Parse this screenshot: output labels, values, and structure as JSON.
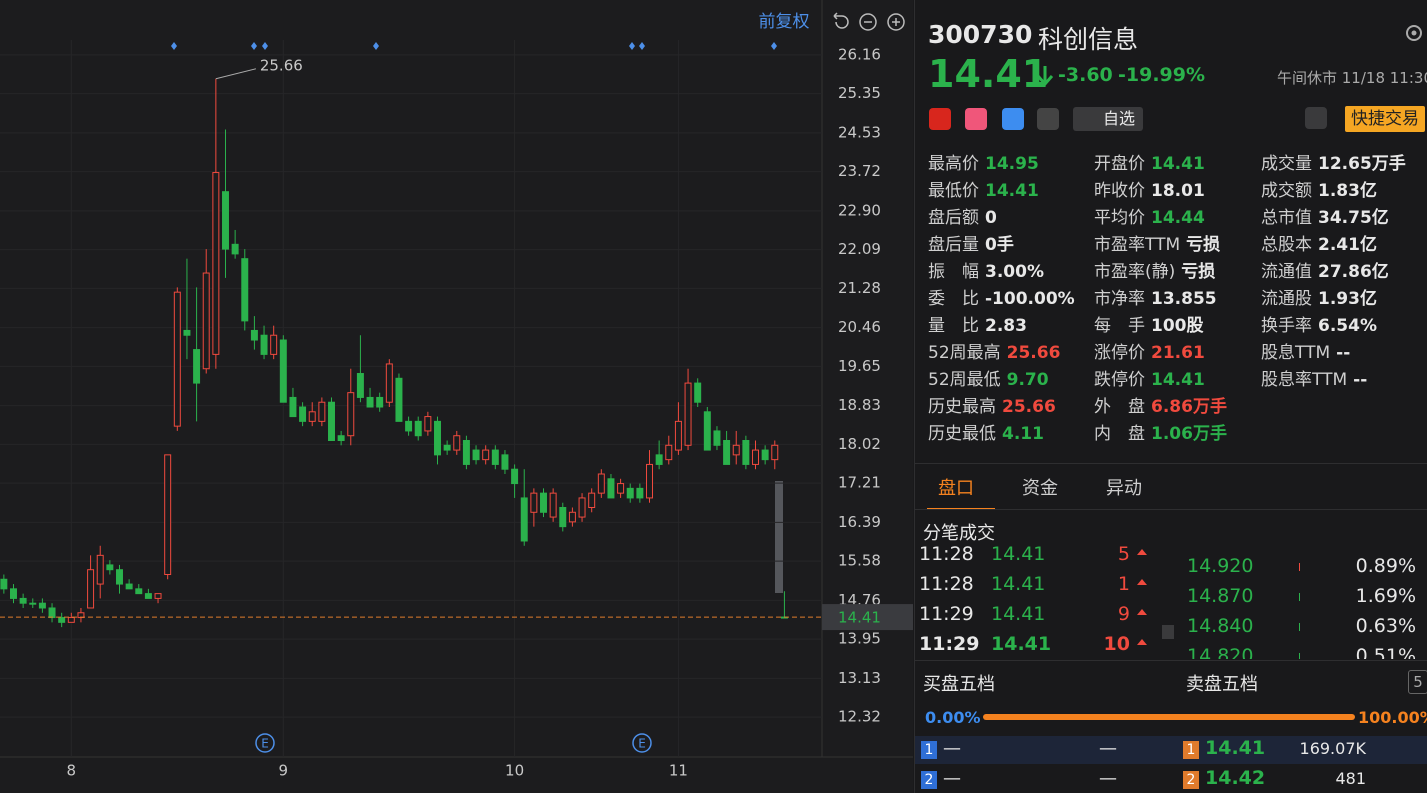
{
  "chart_data": {
    "type": "candlestick",
    "adjust_button": "前复权",
    "annotation": "25.66",
    "last_price": 14.41,
    "up_color": "#f04a3e",
    "down_color": "#2bb24c",
    "grid": true,
    "xlim": [
      -0.4,
      84.9
    ],
    "xticks": [
      {
        "value": 7,
        "label": "8"
      },
      {
        "value": 29,
        "label": "9"
      },
      {
        "value": 53,
        "label": "10"
      },
      {
        "value": 70,
        "label": "11"
      }
    ],
    "ylim": [
      12.05,
      26.47
    ],
    "yticks": [
      26.16,
      25.35,
      24.53,
      23.72,
      {
        "value": 22.9,
        "label": "22.90"
      },
      22.09,
      21.28,
      20.46,
      19.65,
      18.83,
      18.02,
      17.21,
      16.39,
      15.58,
      14.76,
      13.95,
      13.13,
      12.32
    ],
    "open": [
      15.2,
      15.0,
      14.8,
      14.7,
      14.7,
      14.6,
      14.4,
      14.3,
      14.4,
      14.6,
      15.1,
      15.5,
      15.4,
      15.1,
      15.0,
      14.9,
      14.8,
      15.3,
      18.4,
      20.4,
      20.0,
      19.6,
      19.9,
      23.3,
      22.2,
      21.9,
      20.4,
      20.3,
      19.9,
      20.2,
      19.0,
      18.8,
      18.5,
      18.5,
      18.9,
      18.2,
      18.2,
      19.5,
      19.0,
      19.0,
      18.9,
      19.4,
      18.5,
      18.5,
      18.3,
      18.5,
      18.0,
      17.9,
      18.1,
      17.9,
      17.7,
      17.9,
      17.8,
      17.5,
      16.9,
      16.6,
      17.0,
      16.5,
      16.7,
      16.4,
      16.5,
      16.7,
      17.0,
      17.3,
      17.0,
      17.1,
      17.1,
      16.9,
      17.8,
      17.7,
      17.9,
      18.0,
      19.3,
      18.7,
      18.3,
      18.1,
      17.8,
      18.1,
      17.6,
      17.9,
      17.7,
      14.41
    ],
    "high": [
      15.3,
      15.1,
      14.9,
      14.8,
      14.8,
      14.7,
      14.5,
      14.5,
      14.6,
      15.7,
      15.9,
      15.6,
      15.5,
      15.2,
      15.1,
      15.0,
      14.9,
      17.8,
      21.3,
      21.9,
      21.3,
      22.1,
      25.66,
      24.6,
      22.5,
      22.1,
      20.7,
      20.5,
      20.5,
      20.3,
      19.2,
      18.9,
      18.9,
      19.0,
      19.0,
      18.3,
      19.6,
      20.3,
      19.2,
      19.1,
      19.8,
      19.5,
      18.6,
      18.6,
      18.7,
      18.6,
      18.1,
      18.3,
      18.2,
      18.0,
      18.0,
      18.0,
      17.9,
      17.6,
      17.5,
      17.1,
      17.1,
      17.1,
      16.8,
      16.7,
      17.0,
      17.1,
      17.5,
      17.4,
      17.3,
      17.2,
      17.2,
      17.9,
      18.1,
      18.2,
      18.9,
      19.6,
      19.4,
      18.8,
      18.4,
      18.3,
      18.3,
      18.2,
      18.1,
      18.0,
      18.1,
      14.95
    ],
    "low": [
      14.9,
      14.7,
      14.6,
      14.6,
      14.5,
      14.3,
      14.2,
      14.3,
      14.3,
      14.6,
      14.8,
      15.3,
      14.9,
      15.0,
      14.9,
      14.8,
      14.7,
      15.2,
      18.3,
      19.8,
      18.5,
      19.5,
      19.6,
      21.5,
      21.9,
      20.4,
      20.0,
      19.8,
      19.8,
      18.9,
      18.6,
      18.4,
      18.4,
      18.4,
      18.1,
      18.0,
      18.0,
      18.9,
      18.8,
      18.7,
      18.8,
      18.5,
      18.2,
      18.1,
      18.2,
      17.6,
      17.8,
      17.8,
      17.5,
      17.6,
      17.6,
      17.5,
      17.4,
      16.9,
      15.9,
      16.3,
      16.5,
      16.4,
      16.2,
      16.3,
      16.4,
      16.6,
      16.9,
      16.9,
      16.9,
      16.8,
      16.8,
      16.8,
      17.5,
      17.6,
      17.8,
      17.9,
      18.8,
      17.9,
      17.9,
      17.6,
      17.6,
      17.5,
      17.5,
      17.6,
      17.5,
      14.41
    ],
    "close": [
      15.0,
      14.8,
      14.7,
      14.7,
      14.6,
      14.4,
      14.3,
      14.4,
      14.5,
      15.4,
      15.7,
      15.4,
      15.1,
      15.0,
      14.9,
      14.8,
      14.9,
      17.8,
      21.2,
      20.3,
      19.3,
      21.6,
      23.7,
      22.1,
      22.0,
      20.6,
      20.2,
      19.9,
      20.3,
      18.9,
      18.6,
      18.5,
      18.7,
      18.9,
      18.1,
      18.1,
      19.1,
      19.0,
      18.8,
      18.8,
      19.7,
      18.5,
      18.3,
      18.2,
      18.6,
      17.8,
      17.9,
      18.2,
      17.6,
      17.7,
      17.9,
      17.6,
      17.5,
      17.2,
      16.0,
      17.0,
      16.6,
      17.0,
      16.3,
      16.6,
      16.9,
      17.0,
      17.4,
      16.9,
      17.2,
      16.9,
      16.9,
      17.6,
      17.6,
      18.0,
      18.5,
      19.3,
      18.9,
      17.9,
      18.0,
      17.6,
      18.0,
      17.6,
      17.9,
      17.7,
      18.0,
      14.41
    ]
  },
  "quote": {
    "code": "300730",
    "name": "科创信息",
    "price": "14.41",
    "change": "-3.60",
    "change_pct": "-19.99%",
    "status": "午间休市 11/18 11:30",
    "watch_button": "自选",
    "trade_button": "快捷交易"
  },
  "stats": {
    "columns": [
      [
        {
          "label": "最高价",
          "value": "14.95",
          "color": "#2bb24c"
        },
        {
          "label": "最低价",
          "value": "14.41",
          "color": "#2bb24c"
        },
        {
          "label": "盘后额",
          "value": "0",
          "color": "#e8e8e8"
        },
        {
          "label": "盘后量",
          "value": "0手",
          "color": "#e8e8e8"
        },
        {
          "label": "振　幅",
          "value": "3.00%",
          "color": "#e8e8e8"
        },
        {
          "label": "委　比",
          "value": "-100.00%",
          "color": "#e8e8e8"
        },
        {
          "label": "量　比",
          "value": "2.83",
          "color": "#e8e8e8"
        },
        {
          "label": "52周最高",
          "value": "25.66",
          "color": "#f04a3e"
        },
        {
          "label": "52周最低",
          "value": "9.70",
          "color": "#2bb24c"
        },
        {
          "label": "历史最高",
          "value": "25.66",
          "color": "#f04a3e"
        },
        {
          "label": "历史最低",
          "value": "4.11",
          "color": "#2bb24c"
        }
      ],
      [
        {
          "label": "开盘价",
          "value": "14.41",
          "color": "#2bb24c"
        },
        {
          "label": "昨收价",
          "value": "18.01",
          "color": "#e8e8e8"
        },
        {
          "label": "平均价",
          "value": "14.44",
          "color": "#2bb24c"
        },
        {
          "label": "市盈率TTM",
          "value": "亏损",
          "color": "#e8e8e8"
        },
        {
          "label": "市盈率(静)",
          "value": "亏损",
          "color": "#e8e8e8"
        },
        {
          "label": "市净率",
          "value": "13.855",
          "color": "#e8e8e8"
        },
        {
          "label": "每　手",
          "value": "100股",
          "color": "#e8e8e8"
        },
        {
          "label": "涨停价",
          "value": "21.61",
          "color": "#f04a3e"
        },
        {
          "label": "跌停价",
          "value": "14.41",
          "color": "#2bb24c"
        },
        {
          "label": "外　盘",
          "value": "6.86万手",
          "color": "#f04a3e"
        },
        {
          "label": "内　盘",
          "value": "1.06万手",
          "color": "#2bb24c"
        }
      ],
      [
        {
          "label": "成交量",
          "value": "12.65万手",
          "color": "#e8e8e8"
        },
        {
          "label": "成交额",
          "value": "1.83亿",
          "color": "#e8e8e8"
        },
        {
          "label": "总市值",
          "value": "34.75亿",
          "color": "#e8e8e8"
        },
        {
          "label": "总股本",
          "value": "2.41亿",
          "color": "#e8e8e8"
        },
        {
          "label": "流通值",
          "value": "27.86亿",
          "color": "#e8e8e8"
        },
        {
          "label": "流通股",
          "value": "1.93亿",
          "color": "#e8e8e8"
        },
        {
          "label": "换手率",
          "value": "6.54%",
          "color": "#e8e8e8"
        },
        {
          "label": "股息TTM",
          "value": "--",
          "color": "#e8e8e8"
        },
        {
          "label": "股息率TTM",
          "value": "--",
          "color": "#e8e8e8"
        }
      ]
    ]
  },
  "tabs": [
    "盘口",
    "资金",
    "异动"
  ],
  "trades": {
    "title": "分笔成交",
    "rows": [
      {
        "time": "11:28",
        "price": "14.41",
        "volume": "5"
      },
      {
        "time": "11:28",
        "price": "14.41",
        "volume": "1"
      },
      {
        "time": "11:29",
        "price": "14.41",
        "volume": "9"
      },
      {
        "time": "11:29",
        "price": "14.41",
        "volume": "10"
      }
    ],
    "distribution": [
      {
        "price": "14.920",
        "pct": "0.89%"
      },
      {
        "price": "14.870",
        "pct": "1.69%"
      },
      {
        "price": "14.840",
        "pct": "0.63%"
      },
      {
        "price": "14.820",
        "pct": "0.51%"
      }
    ]
  },
  "order_book": {
    "buy_title": "买盘五档",
    "sell_title": "卖盘五档",
    "depth": "5",
    "buy_pct": "0.00%",
    "sell_pct": "100.00%",
    "rows": [
      {
        "buy_level": "1",
        "buy_price": "—",
        "buy_volume": "—",
        "sell_level": "1",
        "sell_price": "14.41",
        "sell_volume": "169.07K"
      },
      {
        "buy_level": "2",
        "buy_price": "—",
        "buy_volume": "—",
        "sell_level": "2",
        "sell_price": "14.42",
        "sell_volume": "481"
      }
    ]
  }
}
